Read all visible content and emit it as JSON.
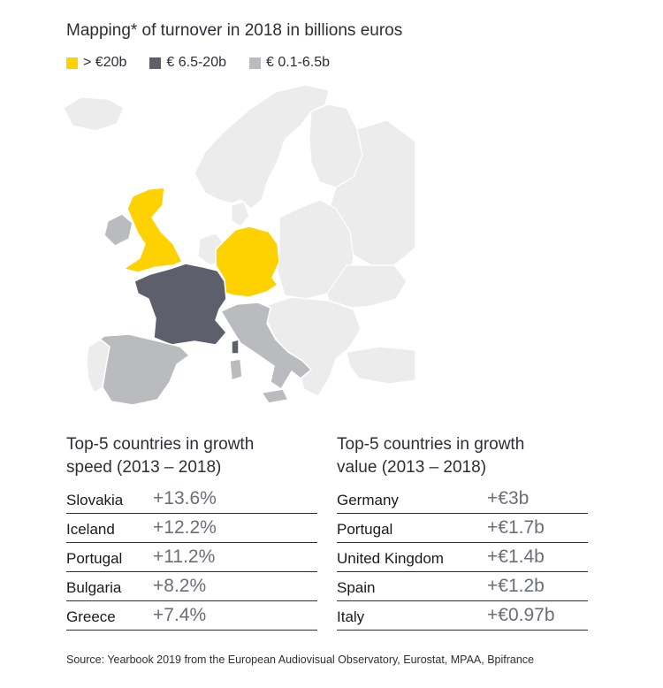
{
  "title": "Mapping* of turnover in 2018 in billions euros",
  "colors": {
    "high": "#fed100",
    "mid": "#5d5f6a",
    "low": "#b9bbbe",
    "other": "#ececec",
    "border": "#ffffff"
  },
  "legend": [
    {
      "label": "> €20b",
      "color": "#fed100"
    },
    {
      "label": "€ 6.5-20b",
      "color": "#5d5f6a"
    },
    {
      "label": "€ 0.1-6.5b",
      "color": "#b9bbbe"
    }
  ],
  "map_regions": [
    {
      "region": "United Kingdom",
      "category": "> €20b"
    },
    {
      "region": "Germany",
      "category": "> €20b"
    },
    {
      "region": "France",
      "category": "€ 6.5-20b"
    },
    {
      "region": "Spain",
      "category": "€ 0.1-6.5b"
    },
    {
      "region": "Italy",
      "category": "€ 0.1-6.5b"
    },
    {
      "region": "Ireland",
      "category": "€ 0.1-6.5b"
    }
  ],
  "growth_speed": {
    "heading_line1": "Top-5 countries in growth",
    "heading_line2": "speed (2013 – 2018)",
    "rows": [
      {
        "country": "Slovakia",
        "value": "+13.6%"
      },
      {
        "country": "Iceland",
        "value": "+12.2%"
      },
      {
        "country": "Portugal",
        "value": "+11.2%"
      },
      {
        "country": "Bulgaria",
        "value": "+8.2%"
      },
      {
        "country": "Greece",
        "value": "+7.4%"
      }
    ]
  },
  "growth_value": {
    "heading_line1": "Top-5 countries in growth",
    "heading_line2": "value (2013 – 2018)",
    "rows": [
      {
        "country": "Germany",
        "value": "+€3b"
      },
      {
        "country": "Portugal",
        "value": "+€1.7b"
      },
      {
        "country": "United Kingdom",
        "value": "+€1.4b"
      },
      {
        "country": "Spain",
        "value": "+€1.2b"
      },
      {
        "country": "Italy",
        "value": "+€0.97b"
      }
    ]
  },
  "source": "Source: Yearbook 2019 from the European Audiovisual Observatory, Eurostat, MPAA, Bpifrance"
}
